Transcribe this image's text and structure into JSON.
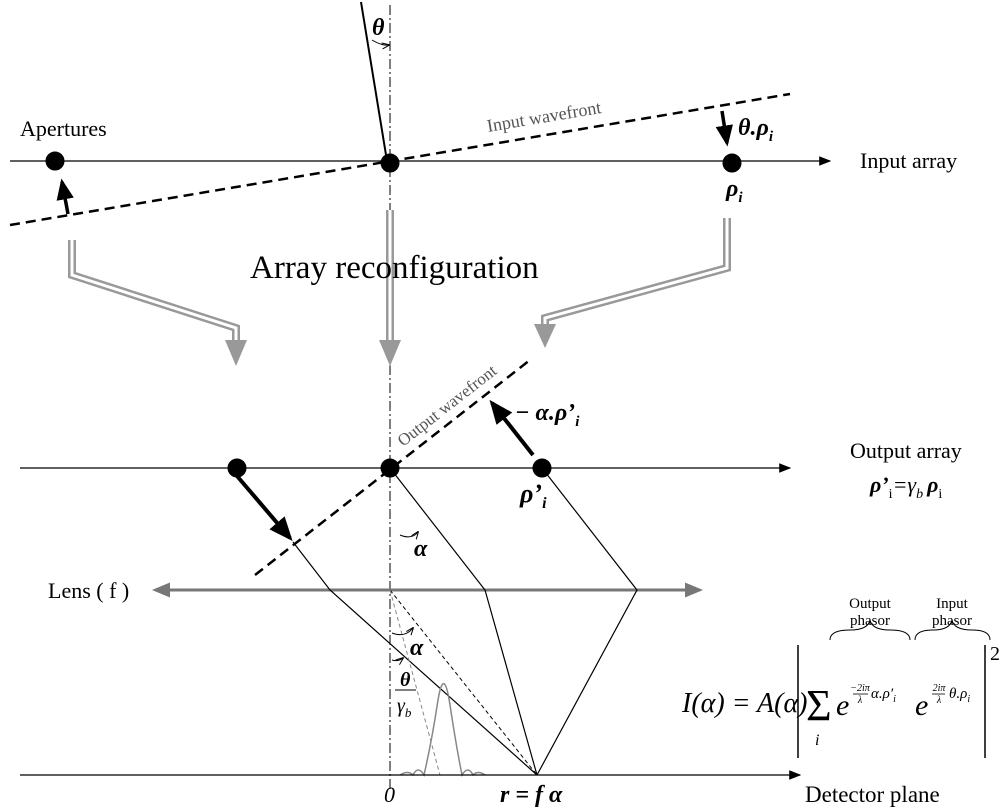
{
  "labels": {
    "theta": "θ",
    "input_wavefront": "Input wavefront",
    "theta_rho": {
      "main": "θ.ρ",
      "sub": "i"
    },
    "apertures": "Apertures",
    "input_array": "Input array",
    "rho_i": {
      "main": "ρ",
      "sub": "i"
    },
    "array_reconfiguration": "Array reconfiguration",
    "output_wavefront": "Output wavefront",
    "minus_alpha_rho": {
      "main": "− α.ρ’",
      "sub": "i"
    },
    "output_array": "Output array",
    "relation": {
      "lhs": "ρ’",
      "lhs_sub": "i",
      "eq": "=γ",
      "gamma_sub": "b",
      "rhs": "ρ",
      "rhs_sub": "i"
    },
    "rho_prime_i": {
      "main": "ρ’",
      "sub": "i"
    },
    "alpha_upper": "α",
    "alpha_lower": "α",
    "lens": "Lens ( f )",
    "theta_over_gamma": {
      "num": "θ",
      "den": "γ",
      "den_sub": "b"
    },
    "origin": "0",
    "r_eq": "r = f α",
    "detector_plane": "Detector plane"
  },
  "formula": {
    "lhs": "I(α) = A(α)",
    "sum": "Σ",
    "sum_index": "i",
    "base_1": "e",
    "exp_1_num": "−2iπ",
    "exp_1_den": "λ",
    "exp_1_rest": "α.ρ′",
    "exp_1_sub": "i",
    "base_2": "e",
    "exp_2_num": "2iπ",
    "exp_2_den": "λ",
    "exp_2_rest": "θ.ρ",
    "exp_2_sub": "i",
    "power": "2",
    "output_phasor": [
      "Output",
      "phasor"
    ],
    "input_phasor": [
      "Input",
      "phasor"
    ]
  }
}
